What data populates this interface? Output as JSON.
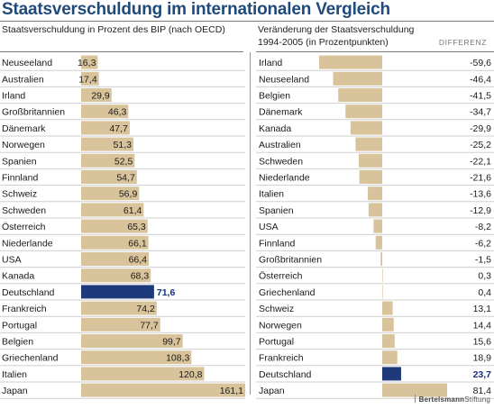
{
  "title": "Staatsverschuldung im internationalen Vergleich",
  "left_subtitle": "Staatsverschuldung in Prozent des BIP (nach OECD)",
  "right_subtitle_1": "Veränderung der Staatsverschuldung",
  "right_subtitle_2": "1994-2005 (in Prozentpunkten)",
  "right_column_header": "DIFFERENZ",
  "footer_brand_bold": "Bertelsmann",
  "footer_brand_rest": "Stiftung",
  "colors": {
    "bar": "#d9c39a",
    "highlight": "#1f3a7a",
    "title": "#1f4a7a",
    "grid": "#cfcfcf"
  },
  "chart_data": [
    {
      "type": "bar",
      "orientation": "horizontal",
      "title": "Staatsverschuldung in Prozent des BIP (nach OECD)",
      "categories": [
        "Neuseeland",
        "Australien",
        "Irland",
        "Großbritannien",
        "Dänemark",
        "Norwegen",
        "Spanien",
        "Finnland",
        "Schweiz",
        "Schweden",
        "Österreich",
        "Niederlande",
        "USA",
        "Kanada",
        "Deutschland",
        "Frankreich",
        "Portugal",
        "Belgien",
        "Griechenland",
        "Italien",
        "Japan"
      ],
      "values": [
        16.3,
        17.4,
        29.9,
        46.3,
        47.7,
        51.3,
        52.5,
        54.7,
        56.9,
        61.4,
        65.3,
        66.1,
        66.4,
        68.3,
        71.6,
        74.2,
        77.7,
        99.7,
        108.3,
        120.8,
        161.1
      ],
      "value_labels": [
        "16,3",
        "17,4",
        "29,9",
        "46,3",
        "47,7",
        "51,3",
        "52,5",
        "54,7",
        "56,9",
        "61,4",
        "65,3",
        "66,1",
        "66,4",
        "68,3",
        "71,6",
        "74,2",
        "77,7",
        "99,7",
        "108,3",
        "120,8",
        "161,1"
      ],
      "highlight": "Deutschland",
      "xlim": [
        0,
        161.1
      ]
    },
    {
      "type": "bar",
      "orientation": "horizontal",
      "title": "Veränderung der Staatsverschuldung 1994-2005 (in Prozentpunkten)",
      "categories": [
        "Irland",
        "Neuseeland",
        "Belgien",
        "Dänemark",
        "Kanada",
        "Australien",
        "Schweden",
        "Niederlande",
        "Italien",
        "Spanien",
        "USA",
        "Finnland",
        "Großbritannien",
        "Österreich",
        "Griechenland",
        "Schweiz",
        "Norwegen",
        "Portugal",
        "Frankreich",
        "Deutschland",
        "Japan"
      ],
      "values": [
        -59.6,
        -46.4,
        -41.5,
        -34.7,
        -29.9,
        -25.2,
        -22.1,
        -21.6,
        -13.6,
        -12.9,
        -8.2,
        -6.2,
        -1.5,
        0.3,
        0.4,
        13.1,
        14.4,
        15.6,
        18.9,
        23.7,
        81.4
      ],
      "value_labels": [
        "-59,6",
        "-46,4",
        "-41,5",
        "-34,7",
        "-29,9",
        "-25,2",
        "-22,1",
        "-21,6",
        "-13,6",
        "-12,9",
        "-8,2",
        "-6,2",
        "-1,5",
        "0,3",
        "0,4",
        "13,1",
        "14,4",
        "15,6",
        "18,9",
        "23,7",
        "81,4"
      ],
      "column_header": "DIFFERENZ",
      "highlight": "Deutschland",
      "xlim": [
        -59.6,
        81.4
      ]
    }
  ]
}
